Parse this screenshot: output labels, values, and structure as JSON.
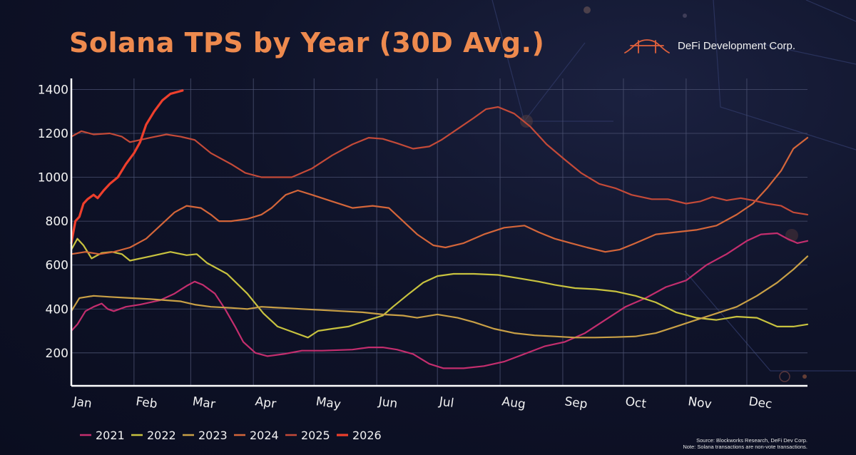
{
  "header": {
    "title": "Solana TPS by Year (30D Avg.)",
    "brand": "DeFi Development Corp."
  },
  "footer": {
    "source": "Source: Blockworks Research, DeFi Dev Corp.",
    "note": "Note: Solana transactions are non-vote transactions."
  },
  "icons": {
    "brand_logo": "bridge-arch-icon"
  },
  "colors": {
    "title": "#ee8a4e",
    "grid": "#4a5070",
    "axis": "#ffffff",
    "background": "#0f1329"
  },
  "chart_data": {
    "type": "line",
    "title": "Solana TPS by Year (30D Avg.)",
    "x_unit": "day of year",
    "x_range": [
      1,
      365
    ],
    "months": [
      "Jan",
      "Feb",
      "Mar",
      "Apr",
      "May",
      "Jun",
      "Jul",
      "Aug",
      "Sep",
      "Oct",
      "Nov",
      "Dec"
    ],
    "month_start_day": [
      1,
      32,
      60,
      91,
      121,
      152,
      182,
      213,
      244,
      274,
      305,
      335
    ],
    "ylim": [
      50,
      1450
    ],
    "yticks": [
      200,
      400,
      600,
      800,
      1000,
      1200,
      1400
    ],
    "grid": true,
    "legend_position": "bottom-left",
    "series": [
      {
        "name": "2021",
        "color": "#c42e6e",
        "points": [
          [
            1,
            300
          ],
          [
            4,
            330
          ],
          [
            8,
            390
          ],
          [
            12,
            410
          ],
          [
            16,
            425
          ],
          [
            19,
            400
          ],
          [
            22,
            390
          ],
          [
            28,
            410
          ],
          [
            35,
            420
          ],
          [
            45,
            440
          ],
          [
            52,
            470
          ],
          [
            58,
            505
          ],
          [
            62,
            525
          ],
          [
            66,
            510
          ],
          [
            72,
            470
          ],
          [
            77,
            400
          ],
          [
            82,
            320
          ],
          [
            86,
            250
          ],
          [
            92,
            200
          ],
          [
            98,
            185
          ],
          [
            106,
            195
          ],
          [
            115,
            210
          ],
          [
            125,
            210
          ],
          [
            140,
            215
          ],
          [
            148,
            225
          ],
          [
            155,
            225
          ],
          [
            162,
            215
          ],
          [
            170,
            195
          ],
          [
            178,
            150
          ],
          [
            185,
            130
          ],
          [
            195,
            130
          ],
          [
            205,
            140
          ],
          [
            215,
            160
          ],
          [
            225,
            195
          ],
          [
            235,
            230
          ],
          [
            245,
            250
          ],
          [
            255,
            290
          ],
          [
            265,
            350
          ],
          [
            275,
            410
          ],
          [
            285,
            450
          ],
          [
            295,
            500
          ],
          [
            305,
            530
          ],
          [
            315,
            600
          ],
          [
            325,
            650
          ],
          [
            335,
            710
          ],
          [
            342,
            740
          ],
          [
            350,
            745
          ],
          [
            355,
            720
          ],
          [
            360,
            700
          ],
          [
            365,
            710
          ]
        ]
      },
      {
        "name": "2022",
        "color": "#c8c23f",
        "points": [
          [
            1,
            670
          ],
          [
            4,
            720
          ],
          [
            7,
            690
          ],
          [
            11,
            630
          ],
          [
            16,
            655
          ],
          [
            21,
            660
          ],
          [
            26,
            650
          ],
          [
            30,
            620
          ],
          [
            40,
            640
          ],
          [
            50,
            660
          ],
          [
            58,
            645
          ],
          [
            63,
            650
          ],
          [
            68,
            610
          ],
          [
            78,
            560
          ],
          [
            88,
            470
          ],
          [
            96,
            380
          ],
          [
            103,
            320
          ],
          [
            112,
            290
          ],
          [
            118,
            270
          ],
          [
            123,
            300
          ],
          [
            130,
            310
          ],
          [
            138,
            320
          ],
          [
            148,
            350
          ],
          [
            155,
            370
          ],
          [
            160,
            410
          ],
          [
            168,
            470
          ],
          [
            175,
            520
          ],
          [
            182,
            550
          ],
          [
            190,
            560
          ],
          [
            200,
            560
          ],
          [
            212,
            555
          ],
          [
            222,
            540
          ],
          [
            232,
            525
          ],
          [
            240,
            510
          ],
          [
            250,
            495
          ],
          [
            260,
            490
          ],
          [
            270,
            480
          ],
          [
            280,
            460
          ],
          [
            290,
            430
          ],
          [
            300,
            385
          ],
          [
            310,
            360
          ],
          [
            320,
            350
          ],
          [
            330,
            365
          ],
          [
            340,
            360
          ],
          [
            345,
            340
          ],
          [
            350,
            320
          ],
          [
            358,
            320
          ],
          [
            365,
            330
          ]
        ]
      },
      {
        "name": "2023",
        "color": "#c9a046",
        "points": [
          [
            1,
            390
          ],
          [
            5,
            450
          ],
          [
            12,
            460
          ],
          [
            20,
            455
          ],
          [
            30,
            450
          ],
          [
            40,
            445
          ],
          [
            55,
            435
          ],
          [
            62,
            420
          ],
          [
            70,
            410
          ],
          [
            80,
            405
          ],
          [
            88,
            400
          ],
          [
            95,
            410
          ],
          [
            105,
            405
          ],
          [
            115,
            400
          ],
          [
            125,
            395
          ],
          [
            135,
            390
          ],
          [
            145,
            385
          ],
          [
            155,
            375
          ],
          [
            165,
            370
          ],
          [
            172,
            360
          ],
          [
            182,
            375
          ],
          [
            192,
            360
          ],
          [
            200,
            340
          ],
          [
            210,
            310
          ],
          [
            220,
            290
          ],
          [
            230,
            280
          ],
          [
            240,
            275
          ],
          [
            250,
            270
          ],
          [
            260,
            270
          ],
          [
            270,
            272
          ],
          [
            280,
            275
          ],
          [
            290,
            290
          ],
          [
            300,
            320
          ],
          [
            310,
            350
          ],
          [
            320,
            380
          ],
          [
            330,
            410
          ],
          [
            340,
            460
          ],
          [
            350,
            520
          ],
          [
            358,
            580
          ],
          [
            365,
            640
          ]
        ]
      },
      {
        "name": "2024",
        "color": "#d4663a",
        "points": [
          [
            1,
            650
          ],
          [
            8,
            660
          ],
          [
            15,
            650
          ],
          [
            22,
            660
          ],
          [
            30,
            680
          ],
          [
            38,
            720
          ],
          [
            45,
            780
          ],
          [
            52,
            840
          ],
          [
            58,
            870
          ],
          [
            65,
            860
          ],
          [
            70,
            830
          ],
          [
            74,
            800
          ],
          [
            80,
            800
          ],
          [
            88,
            810
          ],
          [
            95,
            830
          ],
          [
            100,
            860
          ],
          [
            107,
            920
          ],
          [
            113,
            940
          ],
          [
            120,
            920
          ],
          [
            130,
            890
          ],
          [
            140,
            860
          ],
          [
            150,
            870
          ],
          [
            158,
            860
          ],
          [
            165,
            800
          ],
          [
            172,
            740
          ],
          [
            180,
            690
          ],
          [
            186,
            680
          ],
          [
            195,
            700
          ],
          [
            205,
            740
          ],
          [
            215,
            770
          ],
          [
            225,
            780
          ],
          [
            232,
            750
          ],
          [
            240,
            720
          ],
          [
            248,
            700
          ],
          [
            256,
            680
          ],
          [
            265,
            660
          ],
          [
            272,
            670
          ],
          [
            280,
            700
          ],
          [
            290,
            740
          ],
          [
            300,
            750
          ],
          [
            310,
            760
          ],
          [
            320,
            780
          ],
          [
            330,
            830
          ],
          [
            338,
            880
          ],
          [
            345,
            950
          ],
          [
            352,
            1030
          ],
          [
            358,
            1130
          ],
          [
            365,
            1180
          ]
        ]
      },
      {
        "name": "2025",
        "color": "#c44a38",
        "points": [
          [
            1,
            1185
          ],
          [
            6,
            1210
          ],
          [
            12,
            1195
          ],
          [
            20,
            1200
          ],
          [
            26,
            1185
          ],
          [
            30,
            1160
          ],
          [
            40,
            1180
          ],
          [
            48,
            1195
          ],
          [
            55,
            1185
          ],
          [
            62,
            1170
          ],
          [
            70,
            1110
          ],
          [
            80,
            1060
          ],
          [
            87,
            1020
          ],
          [
            95,
            1000
          ],
          [
            102,
            1000
          ],
          [
            110,
            1000
          ],
          [
            120,
            1040
          ],
          [
            130,
            1100
          ],
          [
            140,
            1150
          ],
          [
            148,
            1180
          ],
          [
            155,
            1175
          ],
          [
            162,
            1155
          ],
          [
            170,
            1130
          ],
          [
            178,
            1140
          ],
          [
            184,
            1170
          ],
          [
            192,
            1220
          ],
          [
            200,
            1270
          ],
          [
            206,
            1310
          ],
          [
            212,
            1320
          ],
          [
            220,
            1290
          ],
          [
            228,
            1230
          ],
          [
            236,
            1150
          ],
          [
            245,
            1080
          ],
          [
            253,
            1020
          ],
          [
            262,
            970
          ],
          [
            270,
            950
          ],
          [
            278,
            920
          ],
          [
            288,
            900
          ],
          [
            296,
            900
          ],
          [
            305,
            880
          ],
          [
            312,
            890
          ],
          [
            318,
            910
          ],
          [
            325,
            895
          ],
          [
            332,
            905
          ],
          [
            338,
            895
          ],
          [
            345,
            880
          ],
          [
            352,
            870
          ],
          [
            358,
            840
          ],
          [
            365,
            830
          ]
        ]
      },
      {
        "name": "2026",
        "color": "#ee3f2c",
        "width": 3.2,
        "points": [
          [
            1,
            700
          ],
          [
            3,
            800
          ],
          [
            5,
            820
          ],
          [
            7,
            880
          ],
          [
            9,
            900
          ],
          [
            12,
            920
          ],
          [
            14,
            905
          ],
          [
            17,
            940
          ],
          [
            20,
            970
          ],
          [
            24,
            1000
          ],
          [
            28,
            1060
          ],
          [
            32,
            1110
          ],
          [
            35,
            1160
          ],
          [
            38,
            1240
          ],
          [
            42,
            1300
          ],
          [
            46,
            1350
          ],
          [
            50,
            1380
          ],
          [
            54,
            1390
          ],
          [
            56,
            1395
          ]
        ]
      }
    ]
  }
}
